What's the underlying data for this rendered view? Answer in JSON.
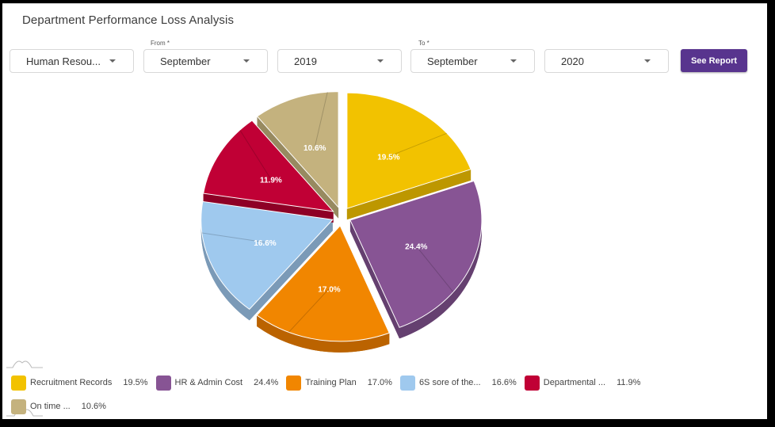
{
  "header": {
    "title": "Department Performance Loss Analysis"
  },
  "filters": {
    "department": {
      "value": "Human Resou..."
    },
    "from_label": "From *",
    "from_month": {
      "value": "September"
    },
    "from_year": {
      "value": "2019"
    },
    "to_label": "To *",
    "to_month": {
      "value": "September"
    },
    "to_year": {
      "value": "2020"
    },
    "submit_label": "See Report"
  },
  "colors": {
    "accent": "#58348e"
  },
  "chart_data": {
    "type": "pie",
    "style": "3d-exploded",
    "title": "Department Performance Loss Analysis",
    "start_angle": "top (12 o'clock), clockwise",
    "legend_position": "bottom",
    "categories": [
      "Recruitment Records",
      "HR & Admin Cost",
      "Training Plan",
      "6S sore of the...",
      "Departmental ...",
      "On time ..."
    ],
    "values": [
      19.5,
      24.4,
      17.0,
      16.6,
      11.9,
      10.6
    ],
    "labels": [
      "19.5%",
      "24.4%",
      "17.0%",
      "16.6%",
      "11.9%",
      "10.6%"
    ],
    "colors": [
      "#f2c200",
      "#875494",
      "#f18600",
      "#9fc9ee",
      "#c00035",
      "#c4b27e"
    ],
    "side_colors": [
      "#bd9700",
      "#654070",
      "#bb6300",
      "#7b9ab7",
      "#8e0026",
      "#978a60"
    ]
  },
  "legend": {
    "items": [
      {
        "label": "Recruitment Records",
        "value": "19.5%",
        "color": "#f2c200"
      },
      {
        "label": "HR & Admin Cost",
        "value": "24.4%",
        "color": "#875494"
      },
      {
        "label": "Training Plan",
        "value": "17.0%",
        "color": "#f18600"
      },
      {
        "label": "6S sore of the...",
        "value": "16.6%",
        "color": "#9fc9ee"
      },
      {
        "label": "Departmental ...",
        "value": "11.9%",
        "color": "#c00035"
      },
      {
        "label": "On time ...",
        "value": "10.6%",
        "color": "#c4b27e"
      }
    ]
  }
}
